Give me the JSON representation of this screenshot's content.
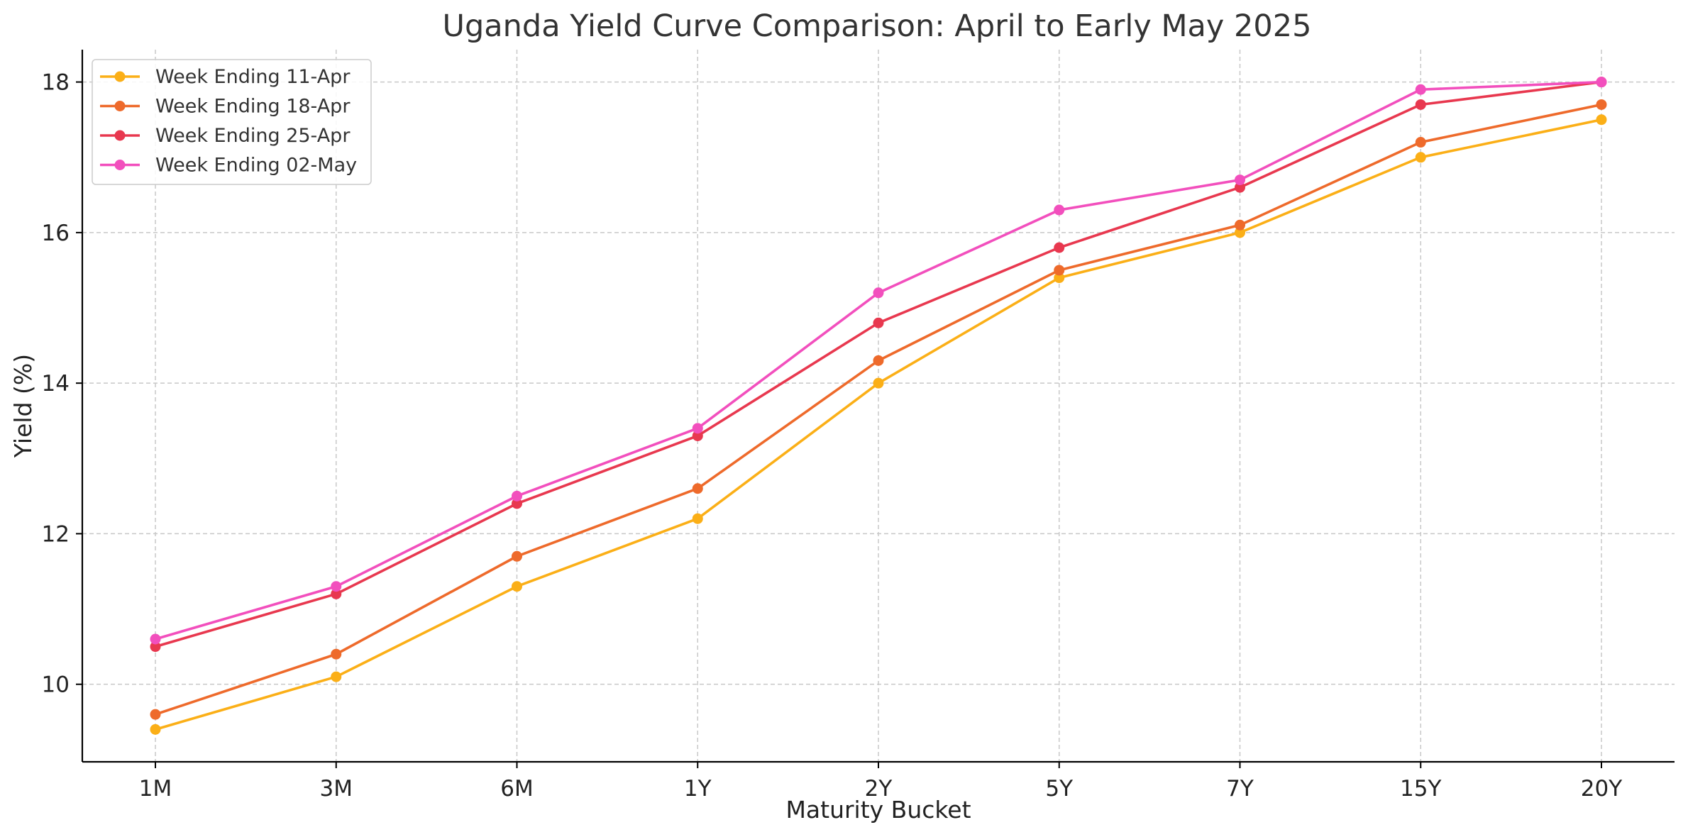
{
  "chart_data": {
    "type": "line",
    "title": "Uganda Yield Curve Comparison: April to Early May 2025",
    "xlabel": "Maturity Bucket",
    "ylabel": "Yield (%)",
    "categories": [
      "1M",
      "3M",
      "6M",
      "1Y",
      "2Y",
      "5Y",
      "7Y",
      "15Y",
      "20Y"
    ],
    "ylim": [
      8.97,
      18.43
    ],
    "yticks": [
      10,
      12,
      14,
      16,
      18
    ],
    "grid": true,
    "legend_position": "top-left",
    "series": [
      {
        "name": "Week Ending 11-Apr",
        "color": "#FBAF17",
        "values": [
          9.4,
          10.1,
          11.3,
          12.2,
          14.0,
          15.4,
          16.0,
          17.0,
          17.5
        ]
      },
      {
        "name": "Week Ending 18-Apr",
        "color": "#EE6A2B",
        "values": [
          9.6,
          10.4,
          11.7,
          12.6,
          14.3,
          15.5,
          16.1,
          17.2,
          17.7
        ]
      },
      {
        "name": "Week Ending 25-Apr",
        "color": "#E8384F",
        "values": [
          10.5,
          11.2,
          12.4,
          13.3,
          14.8,
          15.8,
          16.6,
          17.7,
          18.0
        ]
      },
      {
        "name": "Week Ending 02-May",
        "color": "#F24FBD",
        "values": [
          10.6,
          11.3,
          12.5,
          13.4,
          15.2,
          16.3,
          16.7,
          17.9,
          18.0
        ]
      }
    ]
  }
}
